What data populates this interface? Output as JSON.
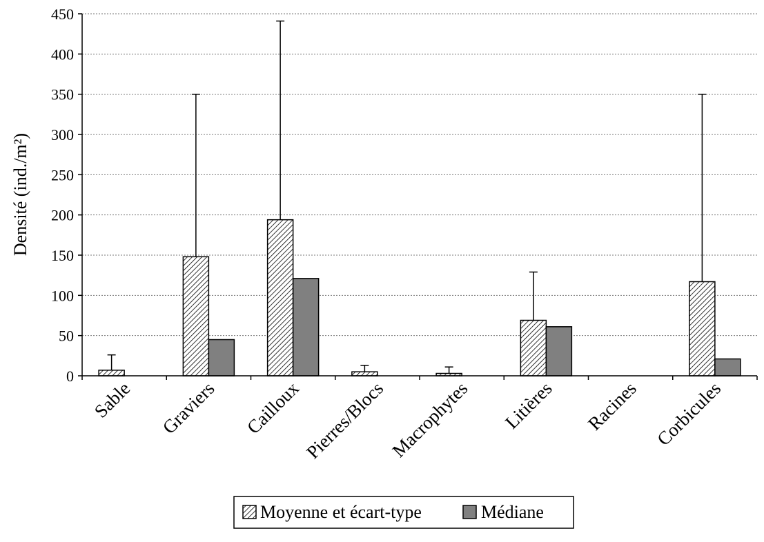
{
  "chart_data": {
    "type": "bar",
    "title": "",
    "xlabel": "",
    "ylabel": "Densité (ind./m²)",
    "ylim": [
      0,
      450
    ],
    "yticks": [
      0,
      50,
      100,
      150,
      200,
      250,
      300,
      350,
      400,
      450
    ],
    "grid": true,
    "legend_position": "bottom",
    "categories": [
      "Sable",
      "Graviers",
      "Cailloux",
      "Pierres/Blocs",
      "Macrophytes",
      "Litières",
      "Racines",
      "Corbicules"
    ],
    "series": [
      {
        "name": "Moyenne et écart-type",
        "style": "hatched",
        "values": [
          7,
          148,
          194,
          5,
          3,
          69,
          0,
          117
        ],
        "error_upper": [
          26,
          350,
          441,
          13,
          11,
          129,
          0,
          350
        ]
      },
      {
        "name": "Médiane",
        "style": "solid",
        "color": "#808080",
        "values": [
          0,
          45,
          121,
          0,
          0,
          61,
          0,
          21
        ]
      }
    ]
  }
}
